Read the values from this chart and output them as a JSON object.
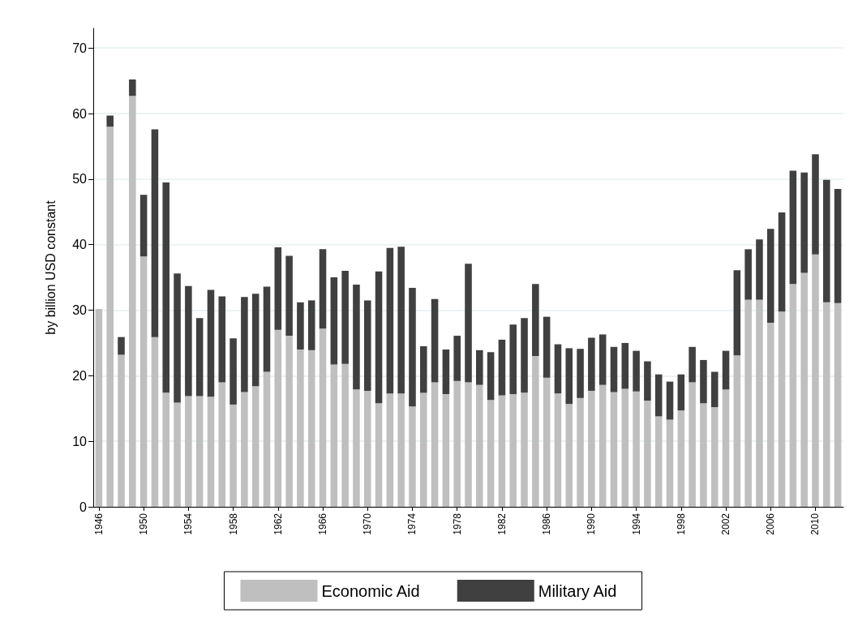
{
  "chart_data": {
    "type": "bar",
    "stacked": true,
    "ylabel": "by billion USD constant",
    "categories": [
      "1946",
      null,
      null,
      null,
      "1950",
      null,
      null,
      null,
      "1954",
      null,
      null,
      null,
      "1958",
      null,
      null,
      null,
      "1962",
      null,
      null,
      null,
      "1966",
      null,
      null,
      null,
      "1970",
      null,
      null,
      null,
      "1974",
      null,
      null,
      null,
      "1978",
      null,
      null,
      null,
      "1982",
      null,
      null,
      null,
      "1986",
      null,
      null,
      null,
      "1990",
      null,
      null,
      null,
      "1994",
      null,
      null,
      null,
      "1998",
      null,
      null,
      null,
      "2002",
      null,
      null,
      null,
      "2006",
      null,
      null,
      null,
      "2010",
      null,
      null
    ],
    "series": [
      {
        "name": "Economic Aid",
        "color": "#bfbfbf",
        "values": [
          30.2,
          58,
          23.2,
          62.7,
          38.2,
          25.9,
          17.4,
          15.9,
          16.9,
          16.9,
          16.8,
          19,
          15.6,
          17.5,
          18.4,
          20.6,
          27,
          26.1,
          24,
          23.9,
          27.2,
          21.7,
          21.8,
          17.9,
          17.7,
          15.8,
          17.3,
          17.3,
          15.3,
          17.4,
          19,
          17.2,
          19.2,
          19,
          18.6,
          16.3,
          17,
          17.2,
          17.4,
          23,
          19.7,
          17.3,
          15.7,
          16.6,
          17.7,
          18.6,
          17.5,
          18,
          17.6,
          16.2,
          13.8,
          13.3,
          14.7,
          19,
          15.8,
          15.2,
          17.9,
          23.1,
          31.6,
          31.6,
          28.1,
          29.8,
          34,
          35.7,
          38.5,
          31.2,
          31.1
        ]
      },
      {
        "name": "Military Aid",
        "color": "#404040",
        "values": [
          0,
          1.7,
          2.7,
          2.5,
          9.4,
          31.7,
          32.1,
          19.7,
          16.8,
          11.9,
          16.3,
          13.1,
          10.1,
          14.5,
          14.1,
          13,
          12.6,
          12.2,
          7.2,
          7.6,
          12.1,
          13.3,
          14.2,
          16,
          13.8,
          20.1,
          22.2,
          22.4,
          18.1,
          7.1,
          12.7,
          6.8,
          6.9,
          18.1,
          5.3,
          7.3,
          8.5,
          10.6,
          11.4,
          11,
          9.3,
          7.5,
          8.5,
          7.5,
          8.1,
          7.7,
          6.9,
          7,
          6.2,
          6,
          6.4,
          5.8,
          5.5,
          5.4,
          6.6,
          5.4,
          5.9,
          13,
          7.7,
          9.2,
          14.3,
          15.1,
          17.3,
          15.3,
          15.3,
          18.7,
          17.4
        ]
      }
    ],
    "ylim": [
      0,
      73
    ],
    "yticks": [
      0,
      10,
      20,
      30,
      40,
      50,
      60,
      70
    ],
    "grid": "y",
    "legend": "bottom"
  }
}
